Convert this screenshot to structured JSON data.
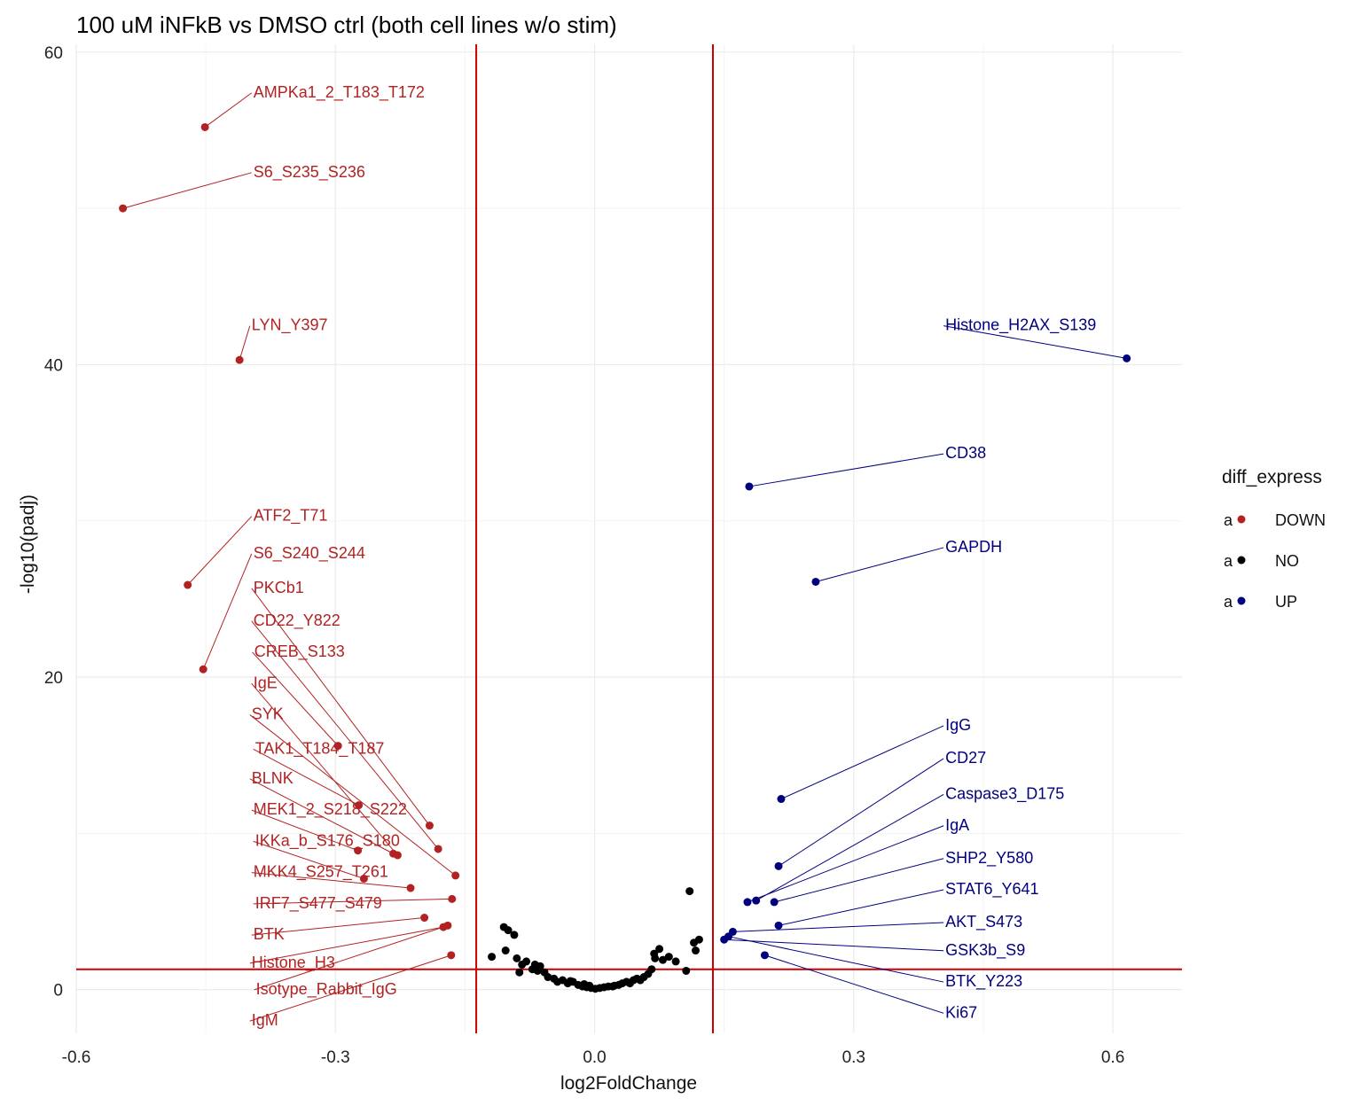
{
  "chart_data": {
    "type": "scatter",
    "title": "100 uM iNFkB vs DMSO ctrl (both cell lines w/o stim)",
    "xlabel": "log2FoldChange",
    "ylabel": "-log10(padj)",
    "xlim": [
      -0.6,
      0.68
    ],
    "ylim": [
      -2.8,
      60.5
    ],
    "xticks": [
      -0.6,
      -0.3,
      0.0,
      0.3,
      0.6
    ],
    "xtick_labels": [
      "-0.6",
      "-0.3",
      "0.0",
      "0.3",
      "0.6"
    ],
    "yticks": [
      0,
      20,
      40,
      60
    ],
    "ytick_labels": [
      "0",
      "20",
      "40",
      "60"
    ],
    "grid": true,
    "thresholds": {
      "vlines": [
        -0.137,
        0.137
      ],
      "hline": 1.3,
      "color": "#cc0000"
    },
    "legend": {
      "title": "diff_express",
      "position": "right",
      "key_glyph": "a",
      "entries": [
        {
          "label": "DOWN",
          "color": "#b22222"
        },
        {
          "label": "NO",
          "color": "#000000"
        },
        {
          "label": "UP",
          "color": "#00007f"
        }
      ]
    },
    "colors": {
      "DOWN": "#b22222",
      "NO": "#000000",
      "UP": "#00007f"
    },
    "series": [
      {
        "name": "DOWN",
        "points": [
          {
            "label": "AMPKa1_2_T183_T172",
            "x": -0.451,
            "y": 55.2,
            "lx": -0.396,
            "ly": 57.5
          },
          {
            "label": "S6_S235_S236",
            "x": -0.546,
            "y": 50.0,
            "lx": -0.396,
            "ly": 52.4
          },
          {
            "label": "LYN_Y397",
            "x": -0.411,
            "y": 40.3,
            "lx": -0.398,
            "ly": 42.6
          },
          {
            "label": "ATF2_T71",
            "x": -0.471,
            "y": 25.9,
            "lx": -0.396,
            "ly": 30.4
          },
          {
            "label": "S6_S240_S244",
            "x": -0.453,
            "y": 20.5,
            "lx": -0.396,
            "ly": 28.0
          },
          {
            "label": "PKCb1",
            "x": -0.191,
            "y": 10.5,
            "lx": -0.396,
            "ly": 25.8
          },
          {
            "label": "CD22_Y822",
            "x": -0.181,
            "y": 9.0,
            "lx": -0.396,
            "ly": 23.7
          },
          {
            "label": "CREB_S133",
            "x": -0.297,
            "y": 15.6,
            "lx": -0.395,
            "ly": 21.7
          },
          {
            "label": "IgE",
            "x": -0.228,
            "y": 8.6,
            "lx": -0.396,
            "ly": 19.7
          },
          {
            "label": "SYK",
            "x": -0.161,
            "y": 7.3,
            "lx": -0.398,
            "ly": 17.7
          },
          {
            "label": "TAK1_T184_T187",
            "x": -0.273,
            "y": 11.8,
            "lx": -0.394,
            "ly": 15.5
          },
          {
            "label": "BLNK",
            "x": -0.233,
            "y": 8.7,
            "lx": -0.398,
            "ly": 13.6
          },
          {
            "label": "MEK1_2_S218_S222",
            "x": -0.274,
            "y": 8.9,
            "lx": -0.396,
            "ly": 11.6
          },
          {
            "label": "IKKa_b_S176_S180",
            "x": -0.267,
            "y": 7.1,
            "lx": -0.394,
            "ly": 9.6
          },
          {
            "label": "MKK4_S257_T261",
            "x": -0.213,
            "y": 6.5,
            "lx": -0.396,
            "ly": 7.6
          },
          {
            "label": "IRF7_S477_S479",
            "x": -0.165,
            "y": 5.8,
            "lx": -0.394,
            "ly": 5.6
          },
          {
            "label": "BTK",
            "x": -0.197,
            "y": 4.6,
            "lx": -0.396,
            "ly": 3.6
          },
          {
            "label": "Histone_H3",
            "x": -0.175,
            "y": 4.0,
            "lx": -0.398,
            "ly": 1.8
          },
          {
            "label": "Isotype_Rabbit_IgG",
            "x": -0.17,
            "y": 4.1,
            "lx": -0.393,
            "ly": 0.1
          },
          {
            "label": "IgM",
            "x": -0.166,
            "y": 2.2,
            "lx": -0.398,
            "ly": -1.9
          }
        ]
      },
      {
        "name": "NO",
        "points": [
          {
            "x": -0.119,
            "y": 2.1
          },
          {
            "x": -0.105,
            "y": 4.0
          },
          {
            "x": -0.1,
            "y": 3.8
          },
          {
            "x": -0.093,
            "y": 3.5
          },
          {
            "x": -0.103,
            "y": 2.5
          },
          {
            "x": -0.09,
            "y": 2.0
          },
          {
            "x": -0.084,
            "y": 1.6
          },
          {
            "x": -0.087,
            "y": 1.1
          },
          {
            "x": -0.079,
            "y": 1.8
          },
          {
            "x": -0.069,
            "y": 1.6
          },
          {
            "x": -0.072,
            "y": 1.3
          },
          {
            "x": -0.066,
            "y": 1.2
          },
          {
            "x": -0.063,
            "y": 1.5
          },
          {
            "x": -0.058,
            "y": 1.1
          },
          {
            "x": -0.054,
            "y": 0.8
          },
          {
            "x": -0.047,
            "y": 0.7
          },
          {
            "x": -0.043,
            "y": 0.5
          },
          {
            "x": -0.037,
            "y": 0.6
          },
          {
            "x": -0.031,
            "y": 0.4
          },
          {
            "x": -0.025,
            "y": 0.5
          },
          {
            "x": -0.019,
            "y": 0.3
          },
          {
            "x": -0.014,
            "y": 0.2
          },
          {
            "x": -0.009,
            "y": 0.15
          },
          {
            "x": -0.004,
            "y": 0.1
          },
          {
            "x": 0.001,
            "y": 0.05
          },
          {
            "x": 0.006,
            "y": 0.1
          },
          {
            "x": 0.011,
            "y": 0.15
          },
          {
            "x": 0.016,
            "y": 0.2
          },
          {
            "x": 0.021,
            "y": 0.2
          },
          {
            "x": -0.012,
            "y": 0.35
          },
          {
            "x": -0.006,
            "y": 0.25
          },
          {
            "x": 0.032,
            "y": 0.4
          },
          {
            "x": 0.037,
            "y": 0.5
          },
          {
            "x": 0.041,
            "y": 0.4
          },
          {
            "x": 0.045,
            "y": 0.6
          },
          {
            "x": 0.049,
            "y": 0.7
          },
          {
            "x": 0.053,
            "y": 0.6
          },
          {
            "x": 0.057,
            "y": 0.8
          },
          {
            "x": 0.062,
            "y": 1.0
          },
          {
            "x": 0.066,
            "y": 1.3
          },
          {
            "x": 0.07,
            "y": 2.0
          },
          {
            "x": 0.069,
            "y": 2.3
          },
          {
            "x": 0.075,
            "y": 2.6
          },
          {
            "x": 0.079,
            "y": 1.9
          },
          {
            "x": 0.086,
            "y": 2.1
          },
          {
            "x": 0.094,
            "y": 1.8
          },
          {
            "x": 0.106,
            "y": 1.2
          },
          {
            "x": 0.11,
            "y": 6.3
          },
          {
            "x": 0.115,
            "y": 3.0
          },
          {
            "x": 0.117,
            "y": 2.5
          },
          {
            "x": 0.121,
            "y": 3.2
          },
          {
            "x": 0.023,
            "y": 0.25
          },
          {
            "x": 0.028,
            "y": 0.3
          },
          {
            "x": -0.028,
            "y": 0.55
          }
        ]
      },
      {
        "name": "UP",
        "points": [
          {
            "label": "Histone_H2AX_S139",
            "x": 0.616,
            "y": 40.4,
            "lx": 0.403,
            "ly": 42.6
          },
          {
            "label": "CD38",
            "x": 0.179,
            "y": 32.2,
            "lx": 0.403,
            "ly": 34.4
          },
          {
            "label": "GAPDH",
            "x": 0.256,
            "y": 26.1,
            "lx": 0.403,
            "ly": 28.4
          },
          {
            "label": "IgG",
            "x": 0.216,
            "y": 12.2,
            "lx": 0.403,
            "ly": 17.0
          },
          {
            "label": "CD27",
            "x": 0.213,
            "y": 7.9,
            "lx": 0.403,
            "ly": 14.9
          },
          {
            "label": "Caspase3_D175",
            "x": 0.187,
            "y": 5.7,
            "lx": 0.403,
            "ly": 12.6
          },
          {
            "label": "IgA",
            "x": 0.177,
            "y": 5.6,
            "lx": 0.403,
            "ly": 10.6
          },
          {
            "label": "SHP2_Y580",
            "x": 0.208,
            "y": 5.6,
            "lx": 0.403,
            "ly": 8.5
          },
          {
            "label": "STAT6_Y641",
            "x": 0.213,
            "y": 4.1,
            "lx": 0.403,
            "ly": 6.5
          },
          {
            "label": "AKT_S473",
            "x": 0.16,
            "y": 3.7,
            "lx": 0.403,
            "ly": 4.4
          },
          {
            "label": "GSK3b_S9",
            "x": 0.15,
            "y": 3.2,
            "lx": 0.403,
            "ly": 2.6
          },
          {
            "label": "BTK_Y223",
            "x": 0.155,
            "y": 3.4,
            "lx": 0.403,
            "ly": 0.6
          },
          {
            "label": "Ki67",
            "x": 0.197,
            "y": 2.2,
            "lx": 0.403,
            "ly": -1.4
          }
        ]
      }
    ]
  }
}
